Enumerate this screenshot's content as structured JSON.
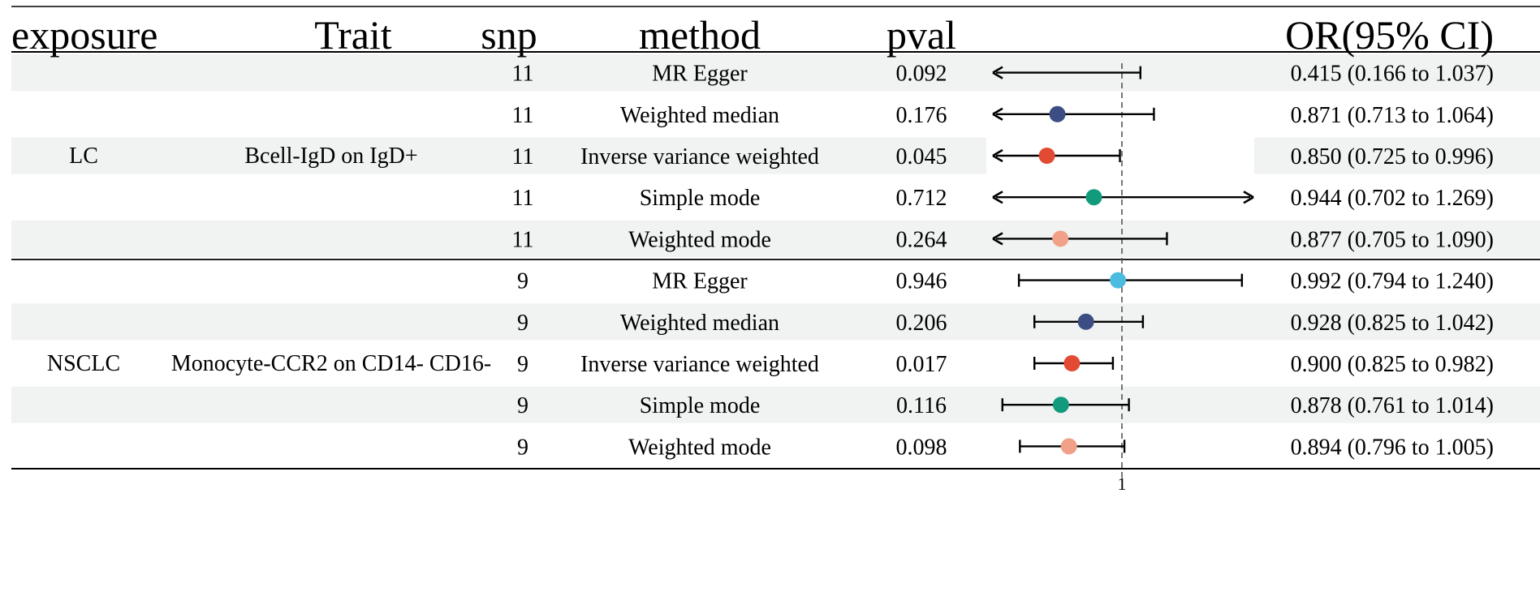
{
  "chart_data": {
    "type": "forest",
    "columns": {
      "exposure": "exposure",
      "trait": "Trait",
      "snp": "snp",
      "method": "method",
      "pval": "pval",
      "or_ci": "OR(95% CI)"
    },
    "reference_line": 1,
    "x_tick_labels": [
      "1"
    ],
    "groups": [
      {
        "exposure": "LC",
        "trait": "Bcell-IgD on IgD+"
      },
      {
        "exposure": "NSCLC",
        "trait": "Monocyte-CCR2 on CD14- CD16-"
      }
    ],
    "rows": [
      {
        "group": 0,
        "snp": "11",
        "method": "MR Egger",
        "pval": "0.092",
        "or": 0.415,
        "lower": 0.166,
        "upper": 1.037,
        "or_ci_text": "0.415 (0.166 to 1.037)",
        "color": "#3b4d82",
        "show_point": false,
        "arrow_left": true,
        "arrow_right": false
      },
      {
        "group": 0,
        "snp": "11",
        "method": "Weighted median",
        "pval": "0.176",
        "or": 0.871,
        "lower": 0.713,
        "upper": 1.064,
        "or_ci_text": "0.871 (0.713 to 1.064)",
        "color": "#3b4d82",
        "show_point": true,
        "arrow_left": true,
        "arrow_right": false
      },
      {
        "group": 0,
        "snp": "11",
        "method": "Inverse variance weighted",
        "pval": "0.045",
        "or": 0.85,
        "lower": 0.725,
        "upper": 0.996,
        "or_ci_text": "0.850 (0.725 to 0.996)",
        "color": "#e34a33",
        "show_point": true,
        "arrow_left": true,
        "arrow_right": false
      },
      {
        "group": 0,
        "snp": "11",
        "method": "Simple mode",
        "pval": "0.712",
        "or": 0.944,
        "lower": 0.702,
        "upper": 1.269,
        "or_ci_text": "0.944 (0.702 to 1.269)",
        "color": "#119a7c",
        "show_point": true,
        "arrow_left": true,
        "arrow_right": true
      },
      {
        "group": 0,
        "snp": "11",
        "method": "Weighted mode",
        "pval": "0.264",
        "or": 0.877,
        "lower": 0.705,
        "upper": 1.09,
        "or_ci_text": "0.877 (0.705 to 1.090)",
        "color": "#f0a187",
        "show_point": true,
        "arrow_left": true,
        "arrow_right": false
      },
      {
        "group": 1,
        "snp": "9",
        "method": "MR Egger",
        "pval": "0.946",
        "or": 0.992,
        "lower": 0.794,
        "upper": 1.24,
        "or_ci_text": "0.992 (0.794 to 1.240)",
        "color": "#4cbbe0",
        "show_point": true,
        "arrow_left": false,
        "arrow_right": false
      },
      {
        "group": 1,
        "snp": "9",
        "method": "Weighted median",
        "pval": "0.206",
        "or": 0.928,
        "lower": 0.825,
        "upper": 1.042,
        "or_ci_text": "0.928 (0.825 to 1.042)",
        "color": "#3b4d82",
        "show_point": true,
        "arrow_left": false,
        "arrow_right": false
      },
      {
        "group": 1,
        "snp": "9",
        "method": "Inverse variance weighted",
        "pval": "0.017",
        "or": 0.9,
        "lower": 0.825,
        "upper": 0.982,
        "or_ci_text": "0.900 (0.825 to 0.982)",
        "color": "#e34a33",
        "show_point": true,
        "arrow_left": false,
        "arrow_right": false
      },
      {
        "group": 1,
        "snp": "9",
        "method": "Simple mode",
        "pval": "0.116",
        "or": 0.878,
        "lower": 0.761,
        "upper": 1.014,
        "or_ci_text": "0.878 (0.761 to 1.014)",
        "color": "#119a7c",
        "show_point": true,
        "arrow_left": false,
        "arrow_right": false
      },
      {
        "group": 1,
        "snp": "9",
        "method": "Weighted mode",
        "pval": "0.098",
        "or": 0.894,
        "lower": 0.796,
        "upper": 1.005,
        "or_ci_text": "0.894 (0.796 to 1.005)",
        "color": "#f0a187",
        "show_point": true,
        "arrow_left": false,
        "arrow_right": false
      }
    ],
    "colors": {
      "stripe": "#f0f3f1",
      "rule": "#000000",
      "reference_line": "#555555"
    }
  }
}
